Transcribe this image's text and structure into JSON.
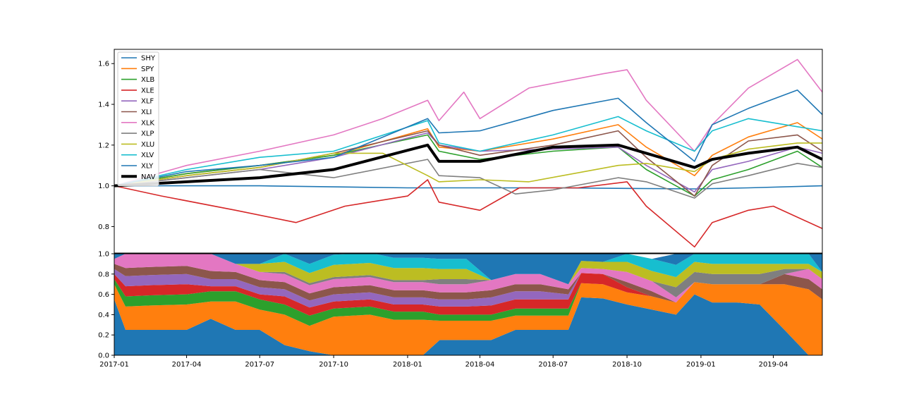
{
  "chart_data": [
    {
      "type": "line",
      "title": "",
      "xlabel": "",
      "ylabel": "",
      "xlim": [
        "2017-01-01",
        "2019-06-01"
      ],
      "ylim": [
        0.67,
        1.67
      ],
      "yticks": [
        "0.8",
        "1.0",
        "1.2",
        "1.4",
        "1.6"
      ],
      "grid": false,
      "legend_position": "upper-left",
      "series": [
        {
          "name": "SHY",
          "color": "#1f77b4",
          "width": 1.6,
          "x": [
            "2017-01-01",
            "2017-07-01",
            "2018-01-01",
            "2018-07-01",
            "2018-12-24",
            "2019-03-01",
            "2019-06-01"
          ],
          "y": [
            1.0,
            1.0,
            0.99,
            0.99,
            0.985,
            0.99,
            1.0
          ]
        },
        {
          "name": "SPY",
          "color": "#ff7f0e",
          "width": 1.6,
          "x": [
            "2017-01-01",
            "2017-04-01",
            "2017-07-01",
            "2017-10-01",
            "2018-01-26",
            "2018-02-09",
            "2018-04-01",
            "2018-07-01",
            "2018-09-20",
            "2018-10-25",
            "2018-12-24",
            "2019-01-15",
            "2019-03-01",
            "2019-05-01",
            "2019-06-01"
          ],
          "y": [
            1.0,
            1.06,
            1.1,
            1.15,
            1.28,
            1.19,
            1.17,
            1.23,
            1.3,
            1.19,
            1.05,
            1.15,
            1.24,
            1.31,
            1.23
          ]
        },
        {
          "name": "XLB",
          "color": "#2ca02c",
          "width": 1.6,
          "x": [
            "2017-01-01",
            "2017-04-01",
            "2017-07-01",
            "2017-10-01",
            "2018-01-26",
            "2018-02-09",
            "2018-04-01",
            "2018-07-01",
            "2018-09-20",
            "2018-10-25",
            "2018-12-24",
            "2019-01-15",
            "2019-03-01",
            "2019-05-01",
            "2019-06-01"
          ],
          "y": [
            1.0,
            1.06,
            1.1,
            1.15,
            1.25,
            1.17,
            1.13,
            1.17,
            1.19,
            1.08,
            0.95,
            1.03,
            1.08,
            1.17,
            1.09
          ]
        },
        {
          "name": "XLE",
          "color": "#d62728",
          "width": 1.6,
          "x": [
            "2017-01-01",
            "2017-03-01",
            "2017-06-01",
            "2017-08-15",
            "2017-10-15",
            "2018-01-01",
            "2018-01-26",
            "2018-02-09",
            "2018-04-01",
            "2018-05-20",
            "2018-08-01",
            "2018-10-01",
            "2018-10-25",
            "2018-12-24",
            "2019-01-15",
            "2019-03-01",
            "2019-04-01",
            "2019-06-01"
          ],
          "y": [
            1.0,
            0.95,
            0.88,
            0.82,
            0.9,
            0.95,
            1.03,
            0.92,
            0.88,
            0.99,
            0.99,
            1.02,
            0.9,
            0.7,
            0.82,
            0.88,
            0.9,
            0.79
          ]
        },
        {
          "name": "XLF",
          "color": "#9467bd",
          "width": 1.6,
          "x": [
            "2017-01-01",
            "2017-04-01",
            "2017-07-01",
            "2017-10-01",
            "2018-01-26",
            "2018-02-09",
            "2018-04-01",
            "2018-07-01",
            "2018-09-20",
            "2018-10-25",
            "2018-12-24",
            "2019-01-15",
            "2019-03-01",
            "2019-05-01",
            "2019-06-01"
          ],
          "y": [
            1.0,
            1.04,
            1.08,
            1.14,
            1.26,
            1.2,
            1.17,
            1.18,
            1.19,
            1.1,
            0.97,
            1.08,
            1.12,
            1.19,
            1.16
          ]
        },
        {
          "name": "XLI",
          "color": "#8c564b",
          "width": 1.6,
          "x": [
            "2017-01-01",
            "2017-04-01",
            "2017-07-01",
            "2017-10-01",
            "2018-01-26",
            "2018-02-09",
            "2018-04-01",
            "2018-07-01",
            "2018-09-20",
            "2018-10-25",
            "2018-12-24",
            "2019-01-15",
            "2019-03-01",
            "2019-05-01",
            "2019-06-01"
          ],
          "y": [
            1.0,
            1.05,
            1.09,
            1.16,
            1.27,
            1.2,
            1.15,
            1.2,
            1.27,
            1.14,
            0.95,
            1.1,
            1.22,
            1.25,
            1.17
          ]
        },
        {
          "name": "XLK",
          "color": "#e377c2",
          "width": 1.6,
          "x": [
            "2017-01-01",
            "2017-04-01",
            "2017-07-01",
            "2017-10-01",
            "2017-12-01",
            "2018-01-26",
            "2018-02-09",
            "2018-03-12",
            "2018-04-01",
            "2018-06-01",
            "2018-09-01",
            "2018-10-01",
            "2018-10-25",
            "2018-12-24",
            "2019-01-15",
            "2019-03-01",
            "2019-05-01",
            "2019-06-01"
          ],
          "y": [
            1.0,
            1.1,
            1.17,
            1.25,
            1.33,
            1.42,
            1.32,
            1.46,
            1.33,
            1.48,
            1.55,
            1.57,
            1.42,
            1.17,
            1.3,
            1.48,
            1.62,
            1.46
          ]
        },
        {
          "name": "XLP",
          "color": "#7f7f7f",
          "width": 1.6,
          "x": [
            "2017-01-01",
            "2017-04-01",
            "2017-07-01",
            "2017-10-01",
            "2018-01-26",
            "2018-02-09",
            "2018-04-01",
            "2018-05-15",
            "2018-07-01",
            "2018-09-20",
            "2018-10-25",
            "2018-12-24",
            "2019-01-15",
            "2019-03-01",
            "2019-05-01",
            "2019-06-01"
          ],
          "y": [
            1.0,
            1.04,
            1.08,
            1.04,
            1.13,
            1.05,
            1.04,
            0.96,
            0.98,
            1.04,
            1.02,
            0.94,
            1.01,
            1.05,
            1.11,
            1.09
          ]
        },
        {
          "name": "XLU",
          "color": "#bcbd22",
          "width": 1.6,
          "x": [
            "2017-01-01",
            "2017-04-01",
            "2017-07-01",
            "2017-10-01",
            "2017-12-01",
            "2018-01-26",
            "2018-02-09",
            "2018-04-01",
            "2018-06-01",
            "2018-09-20",
            "2018-10-25",
            "2018-12-24",
            "2019-01-15",
            "2019-03-01",
            "2019-05-01",
            "2019-06-01"
          ],
          "y": [
            1.0,
            1.05,
            1.09,
            1.16,
            1.16,
            1.05,
            1.02,
            1.03,
            1.02,
            1.1,
            1.11,
            1.07,
            1.13,
            1.18,
            1.21,
            1.21
          ]
        },
        {
          "name": "XLV",
          "color": "#17becf",
          "width": 1.6,
          "x": [
            "2017-01-01",
            "2017-04-01",
            "2017-07-01",
            "2017-10-01",
            "2018-01-26",
            "2018-02-09",
            "2018-04-01",
            "2018-07-01",
            "2018-09-20",
            "2018-10-25",
            "2018-12-24",
            "2019-01-15",
            "2019-03-01",
            "2019-05-01",
            "2019-06-01"
          ],
          "y": [
            1.0,
            1.08,
            1.14,
            1.17,
            1.32,
            1.21,
            1.17,
            1.25,
            1.34,
            1.27,
            1.17,
            1.27,
            1.33,
            1.29,
            1.27
          ]
        },
        {
          "name": "XLY",
          "color": "#1f77b4",
          "width": 1.6,
          "x": [
            "2017-01-01",
            "2017-04-01",
            "2017-07-01",
            "2017-10-01",
            "2018-01-26",
            "2018-02-09",
            "2018-04-01",
            "2018-07-01",
            "2018-09-20",
            "2018-10-25",
            "2018-12-24",
            "2019-01-15",
            "2019-03-01",
            "2019-05-01",
            "2019-06-01"
          ],
          "y": [
            1.0,
            1.07,
            1.1,
            1.14,
            1.33,
            1.26,
            1.27,
            1.37,
            1.43,
            1.31,
            1.12,
            1.3,
            1.38,
            1.47,
            1.35
          ]
        },
        {
          "name": "NAV",
          "color": "#000000",
          "width": 4,
          "x": [
            "2017-01-01",
            "2017-04-01",
            "2017-07-01",
            "2017-10-01",
            "2018-01-26",
            "2018-02-09",
            "2018-04-01",
            "2018-07-01",
            "2018-09-20",
            "2018-10-25",
            "2018-12-24",
            "2019-01-15",
            "2019-03-01",
            "2019-05-01",
            "2019-06-01"
          ],
          "y": [
            1.0,
            1.02,
            1.04,
            1.08,
            1.2,
            1.12,
            1.12,
            1.19,
            1.2,
            1.16,
            1.09,
            1.13,
            1.16,
            1.19,
            1.13
          ]
        }
      ]
    },
    {
      "type": "area",
      "stacked": true,
      "title": "",
      "xlabel": "",
      "ylabel": "",
      "ylim": [
        0,
        1.0
      ],
      "yticks": [
        "0.0",
        "0.2",
        "0.4",
        "0.6",
        "0.8",
        "1.0"
      ],
      "xlim": [
        "2017-01-01",
        "2019-06-01"
      ],
      "xticks": [
        "2017-01",
        "2017-04",
        "2017-07",
        "2017-10",
        "2018-01",
        "2018-04",
        "2018-07",
        "2018-10",
        "2019-01",
        "2019-04"
      ],
      "x": [
        "2017-01-01",
        "2017-01-15",
        "2017-02-15",
        "2017-04-01",
        "2017-05-01",
        "2017-06-01",
        "2017-07-01",
        "2017-08-01",
        "2017-09-01",
        "2017-10-01",
        "2017-11-15",
        "2017-12-15",
        "2018-01-20",
        "2018-02-10",
        "2018-03-15",
        "2018-04-15",
        "2018-05-15",
        "2018-06-15",
        "2018-07-20",
        "2018-08-05",
        "2018-09-01",
        "2018-10-01",
        "2018-11-01",
        "2018-12-01",
        "2018-12-24",
        "2019-01-15",
        "2019-02-15",
        "2019-03-15",
        "2019-04-15",
        "2019-05-15",
        "2019-06-01"
      ],
      "series": [
        {
          "name": "SHY",
          "color": "#1f77b4",
          "values": [
            0.55,
            0.25,
            0.25,
            0.25,
            0.36,
            0.25,
            0.25,
            0.1,
            0.04,
            0.0,
            0.0,
            0.0,
            0.0,
            0.15,
            0.15,
            0.15,
            0.25,
            0.25,
            0.25,
            0.57,
            0.56,
            0.5,
            0.45,
            0.4,
            0.6,
            0.52,
            0.52,
            0.5,
            0.25,
            0.0,
            0.0
          ]
        },
        {
          "name": "SPY",
          "color": "#ff7f0e",
          "values": [
            0.15,
            0.23,
            0.24,
            0.25,
            0.17,
            0.28,
            0.2,
            0.3,
            0.25,
            0.38,
            0.4,
            0.35,
            0.35,
            0.19,
            0.19,
            0.19,
            0.14,
            0.14,
            0.14,
            0.14,
            0.14,
            0.12,
            0.13,
            0.12,
            0.12,
            0.18,
            0.18,
            0.2,
            0.45,
            0.65,
            0.55
          ]
        },
        {
          "name": "XLB",
          "color": "#2ca02c",
          "values": [
            0.05,
            0.1,
            0.1,
            0.1,
            0.1,
            0.1,
            0.1,
            0.1,
            0.1,
            0.08,
            0.08,
            0.08,
            0.08,
            0.06,
            0.06,
            0.06,
            0.07,
            0.07,
            0.07,
            0.0,
            0.0,
            0.0,
            0.0,
            0.0,
            0.0,
            0.0,
            0.0,
            0.0,
            0.0,
            0.0,
            0.0
          ]
        },
        {
          "name": "XLE",
          "color": "#d62728",
          "values": [
            0.05,
            0.1,
            0.1,
            0.1,
            0.05,
            0.05,
            0.05,
            0.08,
            0.08,
            0.07,
            0.07,
            0.07,
            0.07,
            0.08,
            0.08,
            0.09,
            0.09,
            0.09,
            0.09,
            0.1,
            0.1,
            0.05,
            0.0,
            0.0,
            0.0,
            0.0,
            0.0,
            0.0,
            0.0,
            0.0,
            0.0
          ]
        },
        {
          "name": "XLF",
          "color": "#9467bd",
          "values": [
            0.05,
            0.1,
            0.1,
            0.1,
            0.07,
            0.07,
            0.07,
            0.07,
            0.07,
            0.07,
            0.07,
            0.07,
            0.07,
            0.07,
            0.07,
            0.08,
            0.08,
            0.08,
            0.05,
            0.0,
            0.0,
            0.0,
            0.0,
            0.0,
            0.0,
            0.0,
            0.0,
            0.0,
            0.0,
            0.0,
            0.0
          ]
        },
        {
          "name": "XLI",
          "color": "#8c564b",
          "values": [
            0.05,
            0.08,
            0.08,
            0.08,
            0.08,
            0.07,
            0.07,
            0.07,
            0.07,
            0.07,
            0.07,
            0.07,
            0.07,
            0.07,
            0.07,
            0.07,
            0.07,
            0.07,
            0.05,
            0.0,
            0.0,
            0.05,
            0.05,
            0.0,
            0.0,
            0.0,
            0.0,
            0.0,
            0.1,
            0.1,
            0.1
          ]
        },
        {
          "name": "XLK",
          "color": "#e377c2",
          "values": [
            0.05,
            0.14,
            0.13,
            0.12,
            0.17,
            0.08,
            0.08,
            0.08,
            0.08,
            0.08,
            0.08,
            0.08,
            0.08,
            0.08,
            0.08,
            0.1,
            0.1,
            0.1,
            0.05,
            0.05,
            0.05,
            0.1,
            0.1,
            0.05,
            0.0,
            0.0,
            0.0,
            0.0,
            0.0,
            0.1,
            0.1
          ]
        },
        {
          "name": "XLP",
          "color": "#7f7f7f",
          "values": [
            0.0,
            0.0,
            0.0,
            0.0,
            0.0,
            0.0,
            0.0,
            0.02,
            0.02,
            0.02,
            0.02,
            0.02,
            0.02,
            0.05,
            0.05,
            0.0,
            0.0,
            0.0,
            0.0,
            0.0,
            0.0,
            0.0,
            0.0,
            0.1,
            0.1,
            0.1,
            0.1,
            0.1,
            0.05,
            0.0,
            0.0
          ]
        },
        {
          "name": "XLU",
          "color": "#bcbd22",
          "values": [
            0.0,
            0.0,
            0.0,
            0.0,
            0.0,
            0.0,
            0.08,
            0.1,
            0.1,
            0.12,
            0.12,
            0.12,
            0.12,
            0.1,
            0.1,
            0.0,
            0.0,
            0.0,
            0.0,
            0.07,
            0.07,
            0.1,
            0.1,
            0.1,
            0.1,
            0.1,
            0.1,
            0.1,
            0.05,
            0.05,
            0.07
          ]
        },
        {
          "name": "XLV",
          "color": "#17becf",
          "values": [
            0.0,
            0.0,
            0.0,
            0.0,
            0.0,
            0.0,
            0.0,
            0.08,
            0.09,
            0.1,
            0.1,
            0.1,
            0.1,
            0.1,
            0.1,
            0.0,
            0.0,
            0.0,
            0.0,
            0.0,
            0.0,
            0.08,
            0.12,
            0.12,
            0.08,
            0.1,
            0.1,
            0.1,
            0.1,
            0.1,
            0.0
          ]
        },
        {
          "name": "XLY",
          "color": "#1f77b4",
          "values": [
            0.05,
            0.0,
            0.0,
            0.0,
            0.0,
            0.1,
            0.1,
            0.0,
            0.1,
            0.01,
            0.01,
            0.06,
            0.04,
            0.05,
            0.05,
            0.26,
            0.2,
            0.2,
            0.3,
            0.07,
            0.08,
            0.0,
            0.0,
            0.11,
            0.0,
            0.0,
            0.0,
            0.0,
            0.0,
            0.0,
            0.18
          ]
        }
      ]
    }
  ]
}
